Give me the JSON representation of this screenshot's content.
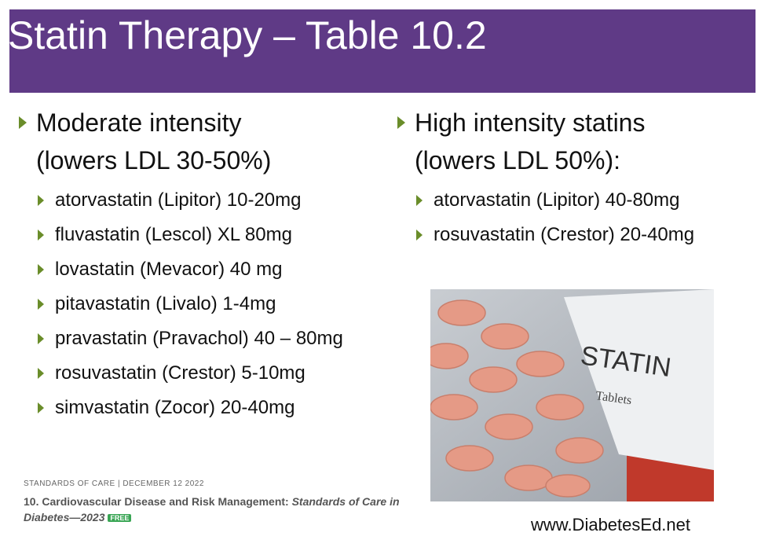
{
  "header": {
    "title": "Statin Therapy – Table 10.2"
  },
  "left": {
    "heading": [
      "Moderate intensity",
      "(lowers LDL 30-50%)"
    ],
    "items": [
      "atorvastatin (Lipitor) 10-20mg",
      "fluvastatin (Lescol) XL 80mg",
      "lovastatin (Mevacor) 40 mg",
      "pitavastatin (Livalo) 1-4mg",
      "pravastatin (Pravachol) 40 – 80mg",
      "rosuvastatin (Crestor) 5-10mg",
      "simvastatin (Zocor) 20-40mg"
    ]
  },
  "right": {
    "heading": [
      "High intensity statins",
      "(lowers LDL 50%):"
    ],
    "items": [
      "atorvastatin (Lipitor) 40-80mg",
      "rosuvastatin (Crestor) 20-40mg"
    ]
  },
  "image": {
    "label": "STATIN",
    "sublabel": "Tablets"
  },
  "citation": {
    "meta": "STANDARDS OF CARE | DECEMBER 12 2022",
    "title": "10. Cardiovascular Disease and Risk Management: ",
    "title_italic": "Standards of Care in Diabetes—2023",
    "badge": "FREE"
  },
  "footer": {
    "url": "www.DiabetesEd.net"
  }
}
